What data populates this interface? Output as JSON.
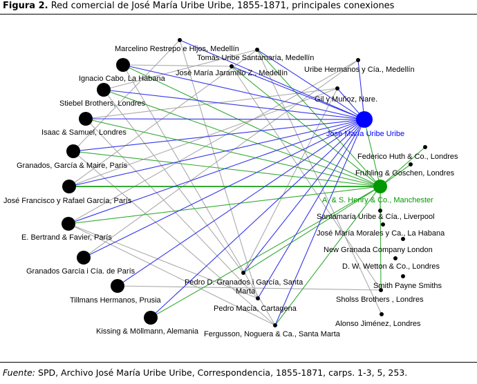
{
  "caption": {
    "label": "Figura 2.",
    "text": "Red comercial de José María Uribe Uribe, 1855-1871, principales conexiones"
  },
  "source": {
    "label": "Fuente:",
    "text": "SPD, Archivo José María Uribe Uribe, Correspondencia, 1855-1871, carps. 1-3, 5, 253."
  },
  "colors": {
    "hub_uribe": "#0000ff",
    "hub_henry": "#009900",
    "node": "#000000",
    "edge_uribe": "#3333ee",
    "edge_henry": "#33aa33",
    "edge_other": "#aaaaaa"
  },
  "nodes": [
    {
      "id": "uribe",
      "label": "José María Uribe Uribe",
      "kind": "hub-uribe"
    },
    {
      "id": "henry",
      "label": "A. & S. Henry & Co., Manchester",
      "kind": "hub-henry"
    },
    {
      "id": "restrepo",
      "label": "Marcelino Restrepo e Hijos, Medellín",
      "kind": "small"
    },
    {
      "id": "tomas",
      "label": "Tomás Uribe Santamaría, Medellín",
      "kind": "small"
    },
    {
      "id": "jaramillo",
      "label": "José María Jaramillo Z., Medellín",
      "kind": "small"
    },
    {
      "id": "uribehnos",
      "label": "Uribe Hermanos y Cía., Medellín",
      "kind": "small"
    },
    {
      "id": "gil",
      "label": "Gil y Muñoz, Nare.",
      "kind": "small"
    },
    {
      "id": "cabo",
      "label": "Ignacio Cabo, La Habana",
      "kind": "large"
    },
    {
      "id": "stiebel",
      "label": "Stiebel Brothers, Londres",
      "kind": "large"
    },
    {
      "id": "isaac",
      "label": "Isaac & Samuel, Londres",
      "kind": "large"
    },
    {
      "id": "granados",
      "label": "Granados, García & Maire, París",
      "kind": "large"
    },
    {
      "id": "garcia",
      "label": "José Francisco y Rafael García, París",
      "kind": "large"
    },
    {
      "id": "bertrand",
      "label": "E. Bertrand & Favier, París",
      "kind": "large"
    },
    {
      "id": "granadosgarcia",
      "label": "Granados García i Cía. de París",
      "kind": "large"
    },
    {
      "id": "tillmans",
      "label": "Tillmans Hermanos, Prusia",
      "kind": "large"
    },
    {
      "id": "kissing",
      "label": "Kissing & Möllmann, Alemania",
      "kind": "large"
    },
    {
      "id": "huth",
      "label": "Federico Huth & Co., Londres",
      "kind": "small"
    },
    {
      "id": "fruhling",
      "label": "Fruhling & Goschen, Londres",
      "kind": "small"
    },
    {
      "id": "santamaria",
      "label": "Santamaría Uribe & Cía., Liverpool",
      "kind": "small"
    },
    {
      "id": "morales",
      "label": "José María Morales y Ca.,  La Habana",
      "kind": "small"
    },
    {
      "id": "newgranada",
      "label": "New Granada Company London",
      "kind": "small"
    },
    {
      "id": "wetton",
      "label": "D. W. Wetton & Co., Londres",
      "kind": "small"
    },
    {
      "id": "smith",
      "label": "Smith Payne Smiths",
      "kind": "small"
    },
    {
      "id": "sholss",
      "label": "Sholss Brothers , Londres",
      "kind": "small"
    },
    {
      "id": "alonso",
      "label": "Alonso Jiménez, Londres",
      "kind": "small"
    },
    {
      "id": "pedrod",
      "label": "Pedro D. Granados i García, Santa Marta",
      "kind": "small"
    },
    {
      "id": "macia",
      "label": "Pedro Macía, Cartagena",
      "kind": "small"
    },
    {
      "id": "fergusson",
      "label": "Fergusson, Noguera & Ca., Santa Marta",
      "kind": "small"
    }
  ],
  "edges": [
    [
      "uribe",
      "restrepo",
      "uribe"
    ],
    [
      "uribe",
      "tomas",
      "uribe"
    ],
    [
      "uribe",
      "jaramillo",
      "uribe"
    ],
    [
      "uribe",
      "uribehnos",
      "uribe"
    ],
    [
      "uribe",
      "gil",
      "uribe"
    ],
    [
      "uribe",
      "cabo",
      "uribe"
    ],
    [
      "uribe",
      "stiebel",
      "uribe"
    ],
    [
      "uribe",
      "isaac",
      "uribe"
    ],
    [
      "uribe",
      "granados",
      "uribe"
    ],
    [
      "uribe",
      "garcia",
      "uribe"
    ],
    [
      "uribe",
      "bertrand",
      "uribe"
    ],
    [
      "uribe",
      "granadosgarcia",
      "uribe"
    ],
    [
      "uribe",
      "tillmans",
      "uribe"
    ],
    [
      "uribe",
      "kissing",
      "uribe"
    ],
    [
      "uribe",
      "pedrod",
      "uribe"
    ],
    [
      "uribe",
      "macia",
      "uribe"
    ],
    [
      "uribe",
      "fergusson",
      "uribe"
    ],
    [
      "henry",
      "cabo",
      "henry"
    ],
    [
      "henry",
      "stiebel",
      "henry"
    ],
    [
      "henry",
      "isaac",
      "henry"
    ],
    [
      "henry",
      "granados",
      "henry"
    ],
    [
      "henry",
      "garcia",
      "henry"
    ],
    [
      "henry",
      "bertrand",
      "henry"
    ],
    [
      "henry",
      "tomas",
      "henry"
    ],
    [
      "henry",
      "jaramillo",
      "henry"
    ],
    [
      "henry",
      "huth",
      "henry"
    ],
    [
      "henry",
      "fruhling",
      "henry"
    ],
    [
      "henry",
      "santamaria",
      "henry"
    ],
    [
      "henry",
      "pedrod",
      "henry"
    ],
    [
      "henry",
      "fergusson",
      "henry"
    ],
    [
      "henry",
      "kissing",
      "henry"
    ],
    [
      "henry",
      "sholss",
      "henry"
    ],
    [
      "uribe",
      "henry",
      "henry"
    ],
    [
      "restrepo",
      "macia",
      "other"
    ],
    [
      "cabo",
      "fergusson",
      "other"
    ],
    [
      "stiebel",
      "pedrod",
      "other"
    ],
    [
      "tomas",
      "alonso",
      "other"
    ],
    [
      "jaramillo",
      "sholss",
      "other"
    ],
    [
      "granados",
      "fergusson",
      "other"
    ],
    [
      "bertrand",
      "macia",
      "other"
    ],
    [
      "gil",
      "pedrod",
      "other"
    ],
    [
      "isaac",
      "macia",
      "other"
    ],
    [
      "garcia",
      "tomas",
      "other"
    ],
    [
      "bertrand",
      "uribehnos",
      "other"
    ],
    [
      "granados",
      "restrepo",
      "other"
    ],
    [
      "garcia",
      "gil",
      "other"
    ],
    [
      "stiebel",
      "tomas",
      "other"
    ],
    [
      "cabo",
      "jaramillo",
      "other"
    ],
    [
      "isaac",
      "gil",
      "other"
    ],
    [
      "bertrand",
      "fergusson",
      "other"
    ],
    [
      "granadosgarcia",
      "uribehnos",
      "other"
    ],
    [
      "tillmans",
      "sholss",
      "other"
    ]
  ]
}
